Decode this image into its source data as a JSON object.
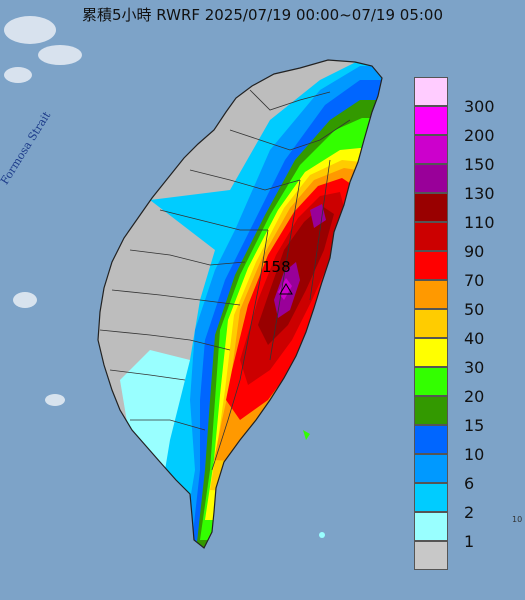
{
  "header": {
    "title": "累積5小時 RWRF 2025/07/19 00:00~07/19 05:00"
  },
  "map": {
    "strait_label": "Formosa Strait",
    "max_value_label": "158",
    "corner_label": "10"
  },
  "legend": {
    "items": [
      {
        "label": "300",
        "color": "#ffccff"
      },
      {
        "label": "200",
        "color": "#ff00ff"
      },
      {
        "label": "150",
        "color": "#cc00cc"
      },
      {
        "label": "130",
        "color": "#990099"
      },
      {
        "label": "110",
        "color": "#990000"
      },
      {
        "label": "90",
        "color": "#cc0000"
      },
      {
        "label": "70",
        "color": "#ff0000"
      },
      {
        "label": "50",
        "color": "#ff9900"
      },
      {
        "label": "40",
        "color": "#ffcc00"
      },
      {
        "label": "30",
        "color": "#ffff00"
      },
      {
        "label": "20",
        "color": "#33ff00"
      },
      {
        "label": "15",
        "color": "#339900"
      },
      {
        "label": "10",
        "color": "#0066ff"
      },
      {
        "label": "6",
        "color": "#0099ff"
      },
      {
        "label": "2",
        "color": "#00ccff"
      },
      {
        "label": "1",
        "color": "#99ffff"
      },
      {
        "label": "",
        "color": "#c8c8c8"
      }
    ]
  },
  "colors": {
    "sea": "#7da3c8",
    "land_no_rain": "#bdbdbd",
    "border": "#333333"
  }
}
